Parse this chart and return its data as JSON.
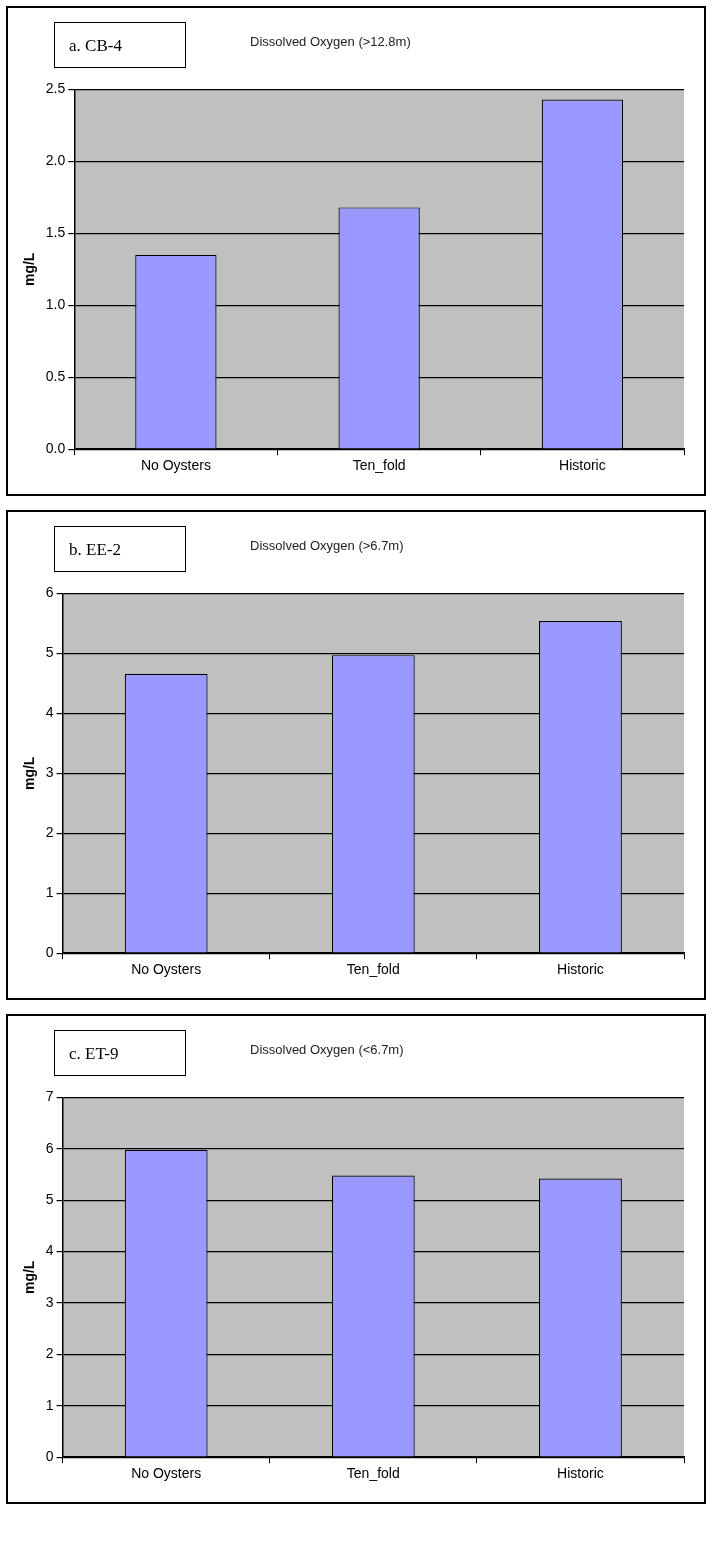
{
  "chart_data": [
    {
      "type": "bar",
      "title": "a. CB-4",
      "subtitle": "Dissolved Oxygen (>12.8m)",
      "ylabel": "mg/L",
      "categories": [
        "No Oysters",
        "Ten_fold",
        "Historic"
      ],
      "values": [
        1.35,
        1.68,
        2.43
      ],
      "color": "#9999ff",
      "ylim": [
        0,
        2.5
      ],
      "yticks": [
        {
          "value": 0,
          "label": "0.0"
        },
        {
          "value": 0.5,
          "label": "0.5"
        },
        {
          "value": 1,
          "label": "1.0"
        },
        {
          "value": 1.5,
          "label": "1.5"
        },
        {
          "value": 2,
          "label": "2.0"
        },
        {
          "value": 2.5,
          "label": "2.5"
        }
      ],
      "grid": "y",
      "legend": false
    },
    {
      "type": "bar",
      "title": "b. EE-2",
      "subtitle": "Dissolved Oxygen (>6.7m)",
      "ylabel": "mg/L",
      "categories": [
        "No Oysters",
        "Ten_fold",
        "Historic"
      ],
      "values": [
        4.66,
        4.97,
        5.54
      ],
      "color": "#9999ff",
      "ylim": [
        0,
        6
      ],
      "yticks": [
        0,
        1,
        2,
        3,
        4,
        5,
        6
      ],
      "grid": "y",
      "legend": false
    },
    {
      "type": "bar",
      "title": "c. ET-9",
      "subtitle": "Dissolved Oxygen (<6.7m)",
      "ylabel": "mg/L",
      "categories": [
        "No Oysters",
        "Ten_fold",
        "Historic"
      ],
      "values": [
        5.98,
        5.48,
        5.42
      ],
      "color": "#9999ff",
      "ylim": [
        0,
        7
      ],
      "yticks": [
        0,
        1,
        2,
        3,
        4,
        5,
        6,
        7
      ],
      "grid": "y",
      "legend": false
    }
  ]
}
